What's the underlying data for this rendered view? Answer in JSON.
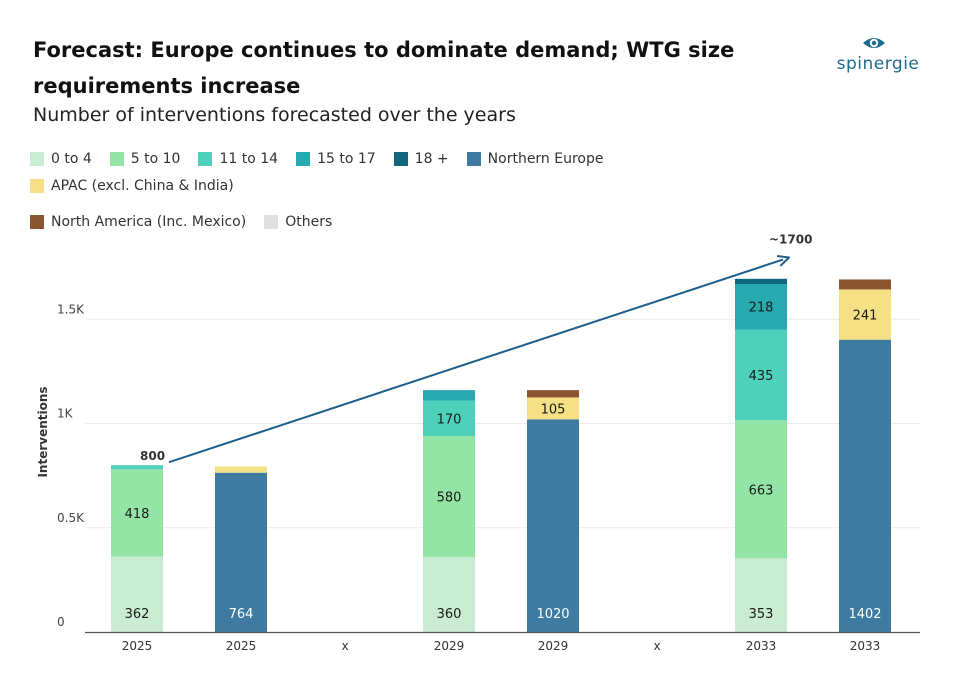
{
  "header": {
    "title": "Forecast: Europe continues to dominate demand; WTG size requirements increase",
    "subtitle": "Number of interventions forecasted over the years"
  },
  "logo": {
    "text": "spinergie",
    "icon": "eye-icon",
    "color": "#1d6c90"
  },
  "legend": [
    {
      "label": "0 to 4",
      "color": "#c9ecd3"
    },
    {
      "label": "5 to 10",
      "color": "#93e4a5"
    },
    {
      "label": "11 to 14",
      "color": "#4ed1bb"
    },
    {
      "label": "15 to 17",
      "color": "#27a9b0"
    },
    {
      "label": "18 +",
      "color": "#11687e"
    },
    {
      "label": "Northern Europe",
      "color": "#3f7aa0"
    },
    {
      "label": "APAC (excl. China & India)",
      "color": "#f6e086"
    },
    {
      "label": "North America (Inc. Mexico)",
      "color": "#8b5530"
    },
    {
      "label": "Others",
      "color": "#e0e0e0"
    }
  ],
  "chart_data": {
    "type": "bar",
    "stacked": true,
    "title": "Forecast: Europe continues to dominate demand; WTG size requirements increase",
    "subtitle": "Number of interventions forecasted over the years",
    "ylabel": "Interventions",
    "xlabel": "",
    "ylim": [
      0,
      1800
    ],
    "yticks": [
      {
        "value": 0,
        "label": "0"
      },
      {
        "value": 500,
        "label": "0.5K"
      },
      {
        "value": 1000,
        "label": "1K"
      },
      {
        "value": 1500,
        "label": "1.5K"
      }
    ],
    "grid": true,
    "legend_position": "top",
    "categories": [
      "2025",
      "2025",
      "x",
      "2029",
      "2029",
      "x",
      "2033",
      "2033"
    ],
    "bars": [
      {
        "category": "2025",
        "segments": [
          {
            "series": "0 to 4",
            "value": 362,
            "label": "362"
          },
          {
            "series": "5 to 10",
            "value": 418,
            "label": "418"
          },
          {
            "series": "11 to 14",
            "value": 20,
            "label": ""
          }
        ]
      },
      {
        "category": "2025",
        "segments": [
          {
            "series": "Northern Europe",
            "value": 764,
            "label": "764"
          },
          {
            "series": "APAC (excl. China & India)",
            "value": 30,
            "label": ""
          }
        ]
      },
      {
        "category": "x",
        "segments": []
      },
      {
        "category": "2029",
        "segments": [
          {
            "series": "0 to 4",
            "value": 360,
            "label": "360"
          },
          {
            "series": "5 to 10",
            "value": 580,
            "label": "580"
          },
          {
            "series": "11 to 14",
            "value": 170,
            "label": "170"
          },
          {
            "series": "15 to 17",
            "value": 50,
            "label": ""
          }
        ]
      },
      {
        "category": "2029",
        "segments": [
          {
            "series": "Northern Europe",
            "value": 1020,
            "label": "1020"
          },
          {
            "series": "APAC (excl. China & India)",
            "value": 105,
            "label": "105"
          },
          {
            "series": "North America (Inc. Mexico)",
            "value": 35,
            "label": ""
          }
        ]
      },
      {
        "category": "x",
        "segments": []
      },
      {
        "category": "2033",
        "segments": [
          {
            "series": "0 to 4",
            "value": 353,
            "label": "353"
          },
          {
            "series": "5 to 10",
            "value": 663,
            "label": "663"
          },
          {
            "series": "11 to 14",
            "value": 435,
            "label": "435"
          },
          {
            "series": "15 to 17",
            "value": 218,
            "label": "218"
          },
          {
            "series": "18 +",
            "value": 25,
            "label": ""
          }
        ]
      },
      {
        "category": "2033",
        "segments": [
          {
            "series": "Northern Europe",
            "value": 1402,
            "label": "1402"
          },
          {
            "series": "APAC (excl. China & India)",
            "value": 241,
            "label": "241"
          },
          {
            "series": "North America (Inc. Mexico)",
            "value": 48,
            "label": ""
          }
        ]
      }
    ],
    "annotations": [
      {
        "text": "800",
        "value": 800,
        "bar_index": 0
      },
      {
        "text": "~1700",
        "value": 1700,
        "bar_index": 6
      }
    ],
    "trend_arrow": {
      "from_value": 800,
      "to_value": 1700
    }
  }
}
